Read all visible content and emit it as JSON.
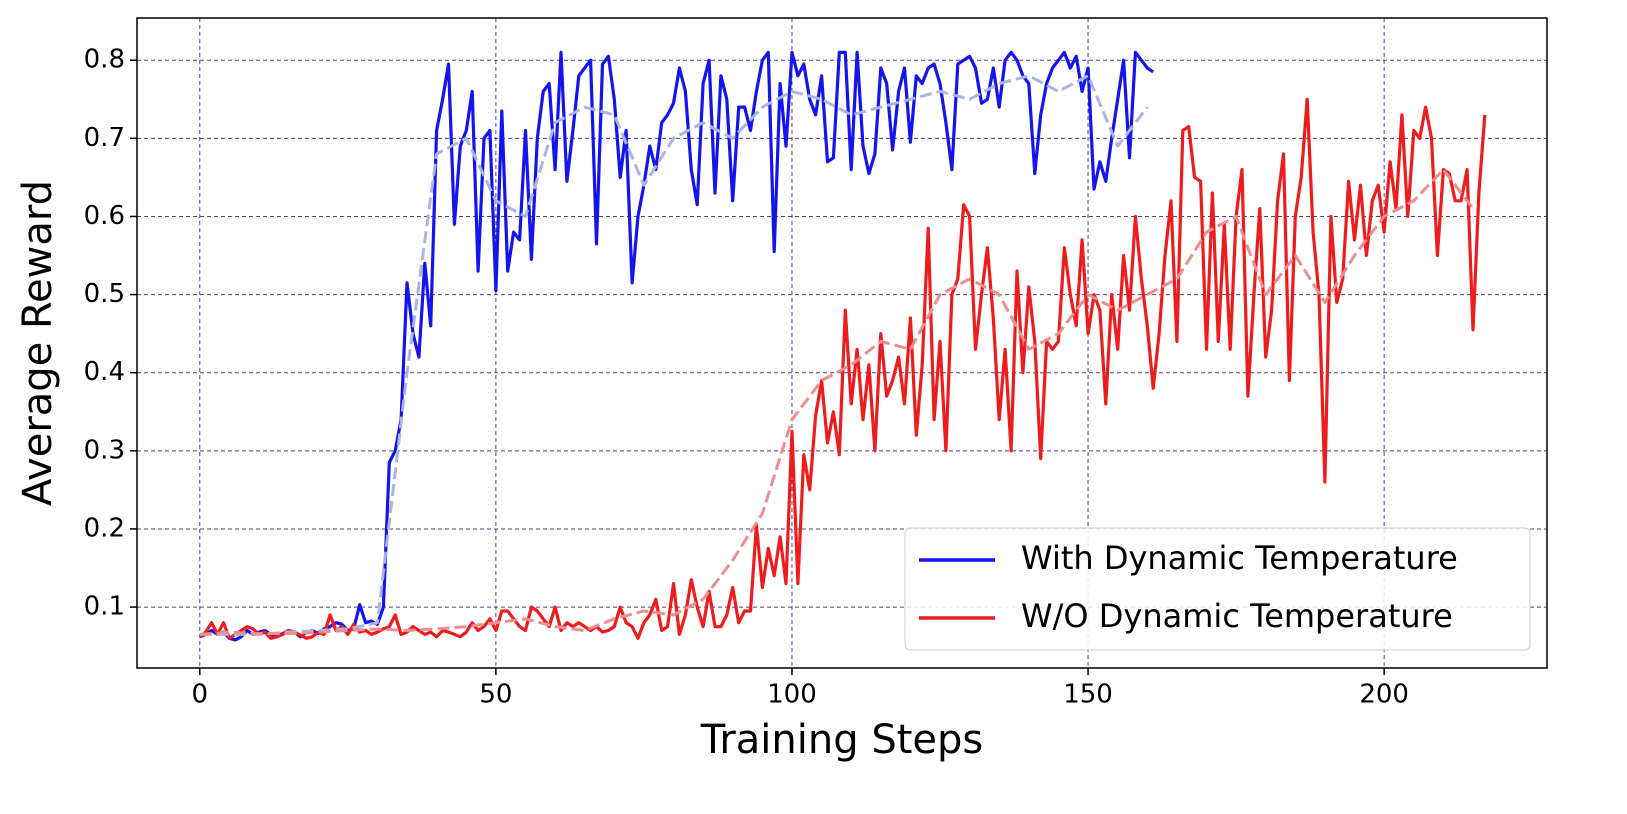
{
  "chart_data": {
    "type": "line",
    "xlabel": "Training Steps",
    "ylabel": "Average Reward",
    "xlim": [
      -10.6,
      227.5
    ],
    "ylim": [
      0.022,
      0.854
    ],
    "xticks": [
      0,
      50,
      100,
      150,
      200
    ],
    "yticks": [
      0.1,
      0.2,
      0.3,
      0.4,
      0.5,
      0.6,
      0.7,
      0.8
    ],
    "grid": true,
    "legend": "lower right",
    "series": [
      {
        "name": "With Dynamic Temperature",
        "color": "#1414ee",
        "values": [
          0.062,
          0.065,
          0.07,
          0.065,
          0.068,
          0.06,
          0.058,
          0.062,
          0.07,
          0.065,
          0.068,
          0.07,
          0.065,
          0.063,
          0.066,
          0.07,
          0.068,
          0.062,
          0.068,
          0.07,
          0.066,
          0.072,
          0.075,
          0.08,
          0.078,
          0.07,
          0.072,
          0.103,
          0.08,
          0.082,
          0.078,
          0.1,
          0.285,
          0.3,
          0.34,
          0.515,
          0.45,
          0.42,
          0.54,
          0.46,
          0.71,
          0.75,
          0.795,
          0.59,
          0.69,
          0.71,
          0.76,
          0.53,
          0.7,
          0.71,
          0.505,
          0.735,
          0.53,
          0.58,
          0.57,
          0.71,
          0.545,
          0.7,
          0.76,
          0.77,
          0.66,
          0.81,
          0.645,
          0.71,
          0.78,
          0.79,
          0.8,
          0.565,
          0.795,
          0.805,
          0.75,
          0.65,
          0.71,
          0.515,
          0.6,
          0.64,
          0.69,
          0.66,
          0.72,
          0.73,
          0.745,
          0.79,
          0.76,
          0.66,
          0.615,
          0.77,
          0.8,
          0.63,
          0.78,
          0.75,
          0.62,
          0.74,
          0.74,
          0.71,
          0.76,
          0.8,
          0.81,
          0.555,
          0.77,
          0.69,
          0.81,
          0.78,
          0.795,
          0.75,
          0.73,
          0.78,
          0.67,
          0.675,
          0.81,
          0.81,
          0.66,
          0.81,
          0.69,
          0.655,
          0.68,
          0.79,
          0.77,
          0.685,
          0.76,
          0.79,
          0.695,
          0.78,
          0.77,
          0.79,
          0.795,
          0.77,
          0.72,
          0.66,
          0.795,
          0.8,
          0.805,
          0.79,
          0.745,
          0.75,
          0.79,
          0.74,
          0.8,
          0.81,
          0.8,
          0.78,
          0.77,
          0.655,
          0.73,
          0.77,
          0.79,
          0.8,
          0.81,
          0.79,
          0.805,
          0.76,
          0.79,
          0.635,
          0.67,
          0.645,
          0.7,
          0.75,
          0.8,
          0.675,
          0.81,
          0.8,
          0.79,
          0.785
        ]
      },
      {
        "name": "W/O Dynamic Temperature",
        "color": "#ee1c1c",
        "values": [
          0.062,
          0.068,
          0.08,
          0.065,
          0.08,
          0.06,
          0.065,
          0.07,
          0.075,
          0.072,
          0.065,
          0.068,
          0.06,
          0.062,
          0.065,
          0.07,
          0.068,
          0.064,
          0.06,
          0.062,
          0.068,
          0.065,
          0.09,
          0.07,
          0.075,
          0.065,
          0.078,
          0.068,
          0.07,
          0.065,
          0.068,
          0.072,
          0.075,
          0.09,
          0.065,
          0.068,
          0.075,
          0.07,
          0.065,
          0.068,
          0.062,
          0.07,
          0.068,
          0.065,
          0.062,
          0.068,
          0.08,
          0.07,
          0.075,
          0.085,
          0.07,
          0.095,
          0.095,
          0.085,
          0.075,
          0.07,
          0.1,
          0.095,
          0.085,
          0.075,
          0.1,
          0.07,
          0.08,
          0.075,
          0.08,
          0.075,
          0.07,
          0.075,
          0.068,
          0.07,
          0.075,
          0.1,
          0.08,
          0.075,
          0.06,
          0.08,
          0.09,
          0.11,
          0.07,
          0.075,
          0.13,
          0.065,
          0.09,
          0.135,
          0.1,
          0.075,
          0.12,
          0.075,
          0.075,
          0.09,
          0.125,
          0.08,
          0.095,
          0.095,
          0.205,
          0.125,
          0.175,
          0.14,
          0.19,
          0.13,
          0.325,
          0.13,
          0.295,
          0.25,
          0.345,
          0.39,
          0.31,
          0.35,
          0.295,
          0.48,
          0.36,
          0.43,
          0.34,
          0.41,
          0.3,
          0.45,
          0.37,
          0.39,
          0.42,
          0.36,
          0.47,
          0.32,
          0.41,
          0.585,
          0.34,
          0.44,
          0.3,
          0.5,
          0.52,
          0.615,
          0.6,
          0.43,
          0.5,
          0.56,
          0.47,
          0.34,
          0.43,
          0.3,
          0.53,
          0.4,
          0.51,
          0.44,
          0.29,
          0.44,
          0.43,
          0.44,
          0.56,
          0.5,
          0.46,
          0.57,
          0.45,
          0.5,
          0.48,
          0.36,
          0.5,
          0.43,
          0.55,
          0.48,
          0.6,
          0.52,
          0.46,
          0.38,
          0.45,
          0.55,
          0.62,
          0.44,
          0.71,
          0.715,
          0.65,
          0.645,
          0.43,
          0.63,
          0.44,
          0.59,
          0.43,
          0.6,
          0.66,
          0.37,
          0.5,
          0.61,
          0.42,
          0.48,
          0.62,
          0.68,
          0.39,
          0.6,
          0.65,
          0.75,
          0.58,
          0.5,
          0.26,
          0.6,
          0.49,
          0.52,
          0.645,
          0.57,
          0.64,
          0.55,
          0.62,
          0.64,
          0.58,
          0.67,
          0.61,
          0.73,
          0.6,
          0.71,
          0.7,
          0.74,
          0.7,
          0.55,
          0.66,
          0.655,
          0.62,
          0.62,
          0.66,
          0.455,
          0.63,
          0.73
        ]
      },
      {
        "color": "#a9b6e2",
        "dashed": true,
        "x": [
          0,
          5,
          10,
          15,
          20,
          25,
          30,
          35,
          40,
          45,
          50,
          55,
          60,
          65,
          70,
          75,
          80,
          85,
          90,
          95,
          100,
          105,
          110,
          115,
          120,
          125,
          130,
          135,
          140,
          145,
          150,
          155,
          160
        ],
        "values": [
          0.065,
          0.065,
          0.065,
          0.068,
          0.07,
          0.072,
          0.08,
          0.4,
          0.68,
          0.7,
          0.62,
          0.6,
          0.72,
          0.74,
          0.73,
          0.64,
          0.7,
          0.72,
          0.7,
          0.74,
          0.76,
          0.75,
          0.73,
          0.74,
          0.75,
          0.76,
          0.75,
          0.77,
          0.78,
          0.76,
          0.78,
          0.69,
          0.74
        ]
      },
      {
        "color": "#ee8e8e",
        "dashed": true,
        "x": [
          0,
          5,
          10,
          15,
          20,
          25,
          30,
          35,
          40,
          45,
          50,
          55,
          60,
          65,
          70,
          75,
          80,
          85,
          90,
          95,
          100,
          105,
          110,
          115,
          120,
          125,
          130,
          135,
          140,
          145,
          150,
          155,
          160,
          165,
          170,
          175,
          180,
          185,
          190,
          195,
          200,
          205,
          210,
          215
        ],
        "values": [
          0.065,
          0.068,
          0.066,
          0.066,
          0.068,
          0.07,
          0.072,
          0.07,
          0.072,
          0.075,
          0.08,
          0.085,
          0.075,
          0.07,
          0.085,
          0.095,
          0.09,
          0.11,
          0.16,
          0.22,
          0.34,
          0.39,
          0.41,
          0.44,
          0.43,
          0.5,
          0.52,
          0.5,
          0.43,
          0.45,
          0.5,
          0.48,
          0.5,
          0.52,
          0.58,
          0.6,
          0.5,
          0.55,
          0.49,
          0.55,
          0.6,
          0.62,
          0.66,
          0.61
        ]
      }
    ]
  }
}
